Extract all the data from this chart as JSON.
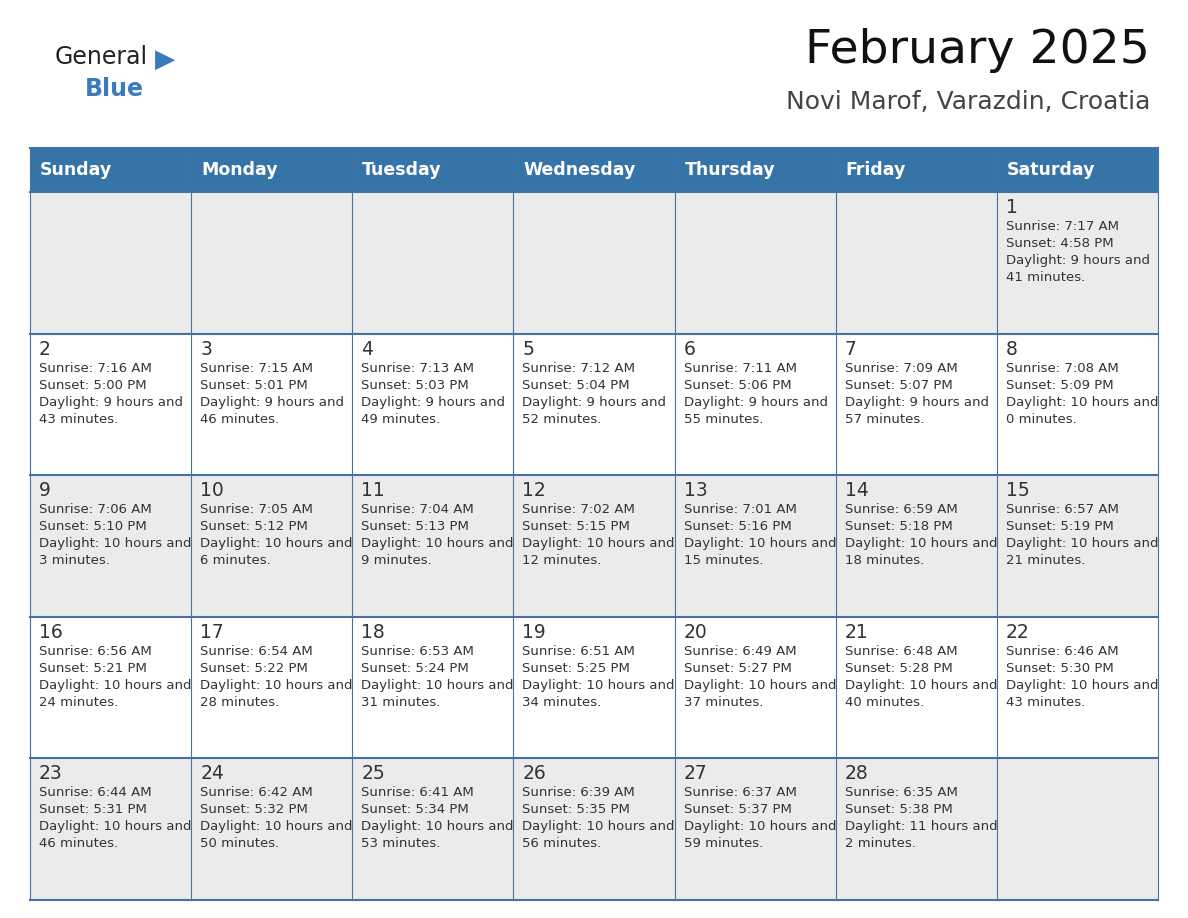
{
  "title": "February 2025",
  "subtitle": "Novi Marof, Varazdin, Croatia",
  "days_of_week": [
    "Sunday",
    "Monday",
    "Tuesday",
    "Wednesday",
    "Thursday",
    "Friday",
    "Saturday"
  ],
  "header_bg_color": "#3674a8",
  "header_text_color": "#ffffff",
  "row_bg_even": "#ebebeb",
  "row_bg_odd": "#ffffff",
  "grid_line_color": "#4472a8",
  "day_number_color": "#333333",
  "cell_text_color": "#333333",
  "title_color": "#111111",
  "subtitle_color": "#444444",
  "logo_general_color": "#222222",
  "logo_blue_color": "#3a7bbf",
  "calendar_data": [
    {
      "day": 1,
      "col": 6,
      "row": 0,
      "sunrise": "7:17 AM",
      "sunset": "4:58 PM",
      "daylight": "9 hours and 41 minutes."
    },
    {
      "day": 2,
      "col": 0,
      "row": 1,
      "sunrise": "7:16 AM",
      "sunset": "5:00 PM",
      "daylight": "9 hours and 43 minutes."
    },
    {
      "day": 3,
      "col": 1,
      "row": 1,
      "sunrise": "7:15 AM",
      "sunset": "5:01 PM",
      "daylight": "9 hours and 46 minutes."
    },
    {
      "day": 4,
      "col": 2,
      "row": 1,
      "sunrise": "7:13 AM",
      "sunset": "5:03 PM",
      "daylight": "9 hours and 49 minutes."
    },
    {
      "day": 5,
      "col": 3,
      "row": 1,
      "sunrise": "7:12 AM",
      "sunset": "5:04 PM",
      "daylight": "9 hours and 52 minutes."
    },
    {
      "day": 6,
      "col": 4,
      "row": 1,
      "sunrise": "7:11 AM",
      "sunset": "5:06 PM",
      "daylight": "9 hours and 55 minutes."
    },
    {
      "day": 7,
      "col": 5,
      "row": 1,
      "sunrise": "7:09 AM",
      "sunset": "5:07 PM",
      "daylight": "9 hours and 57 minutes."
    },
    {
      "day": 8,
      "col": 6,
      "row": 1,
      "sunrise": "7:08 AM",
      "sunset": "5:09 PM",
      "daylight": "10 hours and 0 minutes."
    },
    {
      "day": 9,
      "col": 0,
      "row": 2,
      "sunrise": "7:06 AM",
      "sunset": "5:10 PM",
      "daylight": "10 hours and 3 minutes."
    },
    {
      "day": 10,
      "col": 1,
      "row": 2,
      "sunrise": "7:05 AM",
      "sunset": "5:12 PM",
      "daylight": "10 hours and 6 minutes."
    },
    {
      "day": 11,
      "col": 2,
      "row": 2,
      "sunrise": "7:04 AM",
      "sunset": "5:13 PM",
      "daylight": "10 hours and 9 minutes."
    },
    {
      "day": 12,
      "col": 3,
      "row": 2,
      "sunrise": "7:02 AM",
      "sunset": "5:15 PM",
      "daylight": "10 hours and 12 minutes."
    },
    {
      "day": 13,
      "col": 4,
      "row": 2,
      "sunrise": "7:01 AM",
      "sunset": "5:16 PM",
      "daylight": "10 hours and 15 minutes."
    },
    {
      "day": 14,
      "col": 5,
      "row": 2,
      "sunrise": "6:59 AM",
      "sunset": "5:18 PM",
      "daylight": "10 hours and 18 minutes."
    },
    {
      "day": 15,
      "col": 6,
      "row": 2,
      "sunrise": "6:57 AM",
      "sunset": "5:19 PM",
      "daylight": "10 hours and 21 minutes."
    },
    {
      "day": 16,
      "col": 0,
      "row": 3,
      "sunrise": "6:56 AM",
      "sunset": "5:21 PM",
      "daylight": "10 hours and 24 minutes."
    },
    {
      "day": 17,
      "col": 1,
      "row": 3,
      "sunrise": "6:54 AM",
      "sunset": "5:22 PM",
      "daylight": "10 hours and 28 minutes."
    },
    {
      "day": 18,
      "col": 2,
      "row": 3,
      "sunrise": "6:53 AM",
      "sunset": "5:24 PM",
      "daylight": "10 hours and 31 minutes."
    },
    {
      "day": 19,
      "col": 3,
      "row": 3,
      "sunrise": "6:51 AM",
      "sunset": "5:25 PM",
      "daylight": "10 hours and 34 minutes."
    },
    {
      "day": 20,
      "col": 4,
      "row": 3,
      "sunrise": "6:49 AM",
      "sunset": "5:27 PM",
      "daylight": "10 hours and 37 minutes."
    },
    {
      "day": 21,
      "col": 5,
      "row": 3,
      "sunrise": "6:48 AM",
      "sunset": "5:28 PM",
      "daylight": "10 hours and 40 minutes."
    },
    {
      "day": 22,
      "col": 6,
      "row": 3,
      "sunrise": "6:46 AM",
      "sunset": "5:30 PM",
      "daylight": "10 hours and 43 minutes."
    },
    {
      "day": 23,
      "col": 0,
      "row": 4,
      "sunrise": "6:44 AM",
      "sunset": "5:31 PM",
      "daylight": "10 hours and 46 minutes."
    },
    {
      "day": 24,
      "col": 1,
      "row": 4,
      "sunrise": "6:42 AM",
      "sunset": "5:32 PM",
      "daylight": "10 hours and 50 minutes."
    },
    {
      "day": 25,
      "col": 2,
      "row": 4,
      "sunrise": "6:41 AM",
      "sunset": "5:34 PM",
      "daylight": "10 hours and 53 minutes."
    },
    {
      "day": 26,
      "col": 3,
      "row": 4,
      "sunrise": "6:39 AM",
      "sunset": "5:35 PM",
      "daylight": "10 hours and 56 minutes."
    },
    {
      "day": 27,
      "col": 4,
      "row": 4,
      "sunrise": "6:37 AM",
      "sunset": "5:37 PM",
      "daylight": "10 hours and 59 minutes."
    },
    {
      "day": 28,
      "col": 5,
      "row": 4,
      "sunrise": "6:35 AM",
      "sunset": "5:38 PM",
      "daylight": "11 hours and 2 minutes."
    }
  ],
  "num_rows": 5,
  "num_cols": 7,
  "figsize": [
    11.88,
    9.18
  ],
  "dpi": 100
}
